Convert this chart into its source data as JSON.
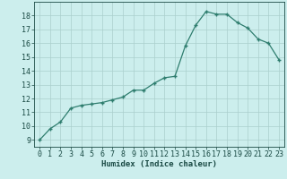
{
  "x": [
    0,
    1,
    2,
    3,
    4,
    5,
    6,
    7,
    8,
    9,
    10,
    11,
    12,
    13,
    14,
    15,
    16,
    17,
    18,
    19,
    20,
    21,
    22,
    23
  ],
  "y": [
    9.0,
    9.8,
    10.3,
    11.3,
    11.5,
    11.6,
    11.7,
    11.9,
    12.1,
    12.6,
    12.6,
    13.1,
    13.5,
    13.6,
    15.8,
    17.3,
    18.3,
    18.1,
    18.1,
    17.5,
    17.1,
    16.3,
    16.0,
    14.8
  ],
  "xlabel": "Humidex (Indice chaleur)",
  "bg_color": "#cceeed",
  "line_color": "#2e7d6e",
  "marker_color": "#2e7d6e",
  "grid_color": "#aacfcc",
  "tick_label_color": "#1a4a44",
  "xlim": [
    -0.5,
    23.5
  ],
  "ylim": [
    8.5,
    19.0
  ],
  "yticks": [
    9,
    10,
    11,
    12,
    13,
    14,
    15,
    16,
    17,
    18
  ],
  "xticks": [
    0,
    1,
    2,
    3,
    4,
    5,
    6,
    7,
    8,
    9,
    10,
    11,
    12,
    13,
    14,
    15,
    16,
    17,
    18,
    19,
    20,
    21,
    22,
    23
  ]
}
